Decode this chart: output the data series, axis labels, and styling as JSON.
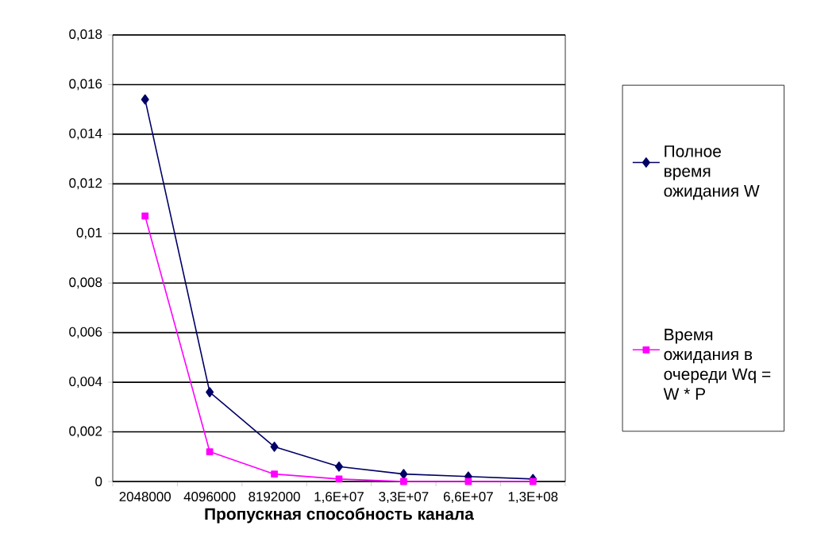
{
  "chart_data": {
    "type": "line",
    "xlabel": "Пропускная способность канала",
    "categories": [
      "2048000",
      "4096000",
      "8192000",
      "1,6E+07",
      "3,3E+07",
      "6,6E+07",
      "1,3E+08"
    ],
    "series": [
      {
        "name": "Полное время ожидания W",
        "color": "#000066",
        "marker": "diamond",
        "values": [
          0.0154,
          0.0036,
          0.0014,
          0.0006,
          0.0003,
          0.0002,
          0.0001
        ]
      },
      {
        "name": "Время ожидания в очереди Wq = W * P",
        "color": "#ff00ff",
        "marker": "square",
        "values": [
          0.0107,
          0.0012,
          0.0003,
          0.0001,
          0,
          0,
          0
        ]
      }
    ],
    "ylim": [
      0,
      0.018
    ],
    "yticks": [
      0,
      {
        "value": 0.002,
        "label": "0,002"
      },
      {
        "value": 0.004,
        "label": "0,004"
      },
      {
        "value": 0.006,
        "label": "0,006"
      },
      {
        "value": 0.008,
        "label": "0,008"
      },
      {
        "value": 0.01,
        "label": "0,01"
      },
      {
        "value": 0.012,
        "label": "0,012"
      },
      {
        "value": 0.014,
        "label": "0,014"
      },
      {
        "value": 0.016,
        "label": "0,016"
      },
      {
        "value": 0.018,
        "label": "0,018"
      }
    ],
    "grid": "y",
    "legend": "right",
    "line_style": "solid"
  }
}
